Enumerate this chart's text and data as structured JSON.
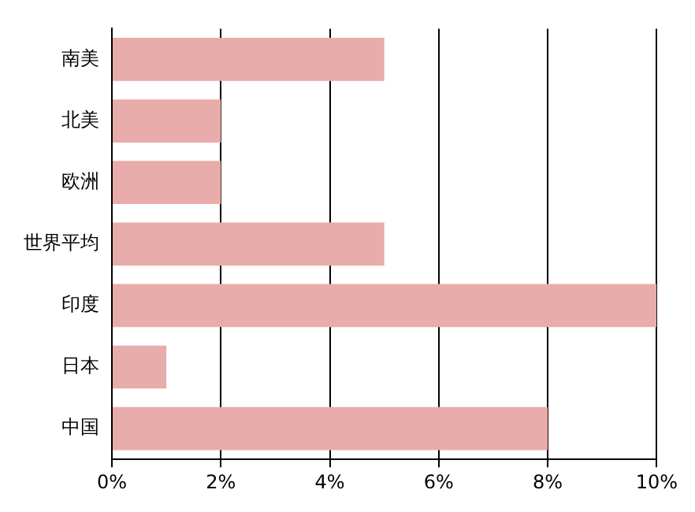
{
  "chart_data": {
    "type": "bar",
    "orientation": "horizontal",
    "categories": [
      "南美",
      "北美",
      "欧洲",
      "世界平均",
      "印度",
      "日本",
      "中国"
    ],
    "values": [
      5,
      2,
      2,
      5,
      10,
      1,
      8
    ],
    "color": "#e8acaa",
    "xlim": [
      0,
      10
    ],
    "xticks": [
      {
        "value": 0,
        "label": "0%"
      },
      {
        "value": 2,
        "label": "2%"
      },
      {
        "value": 4,
        "label": "4%"
      },
      {
        "value": 6,
        "label": "6%"
      },
      {
        "value": 8,
        "label": "8%"
      },
      {
        "value": 10,
        "label": "10%"
      }
    ],
    "grid": "x"
  }
}
